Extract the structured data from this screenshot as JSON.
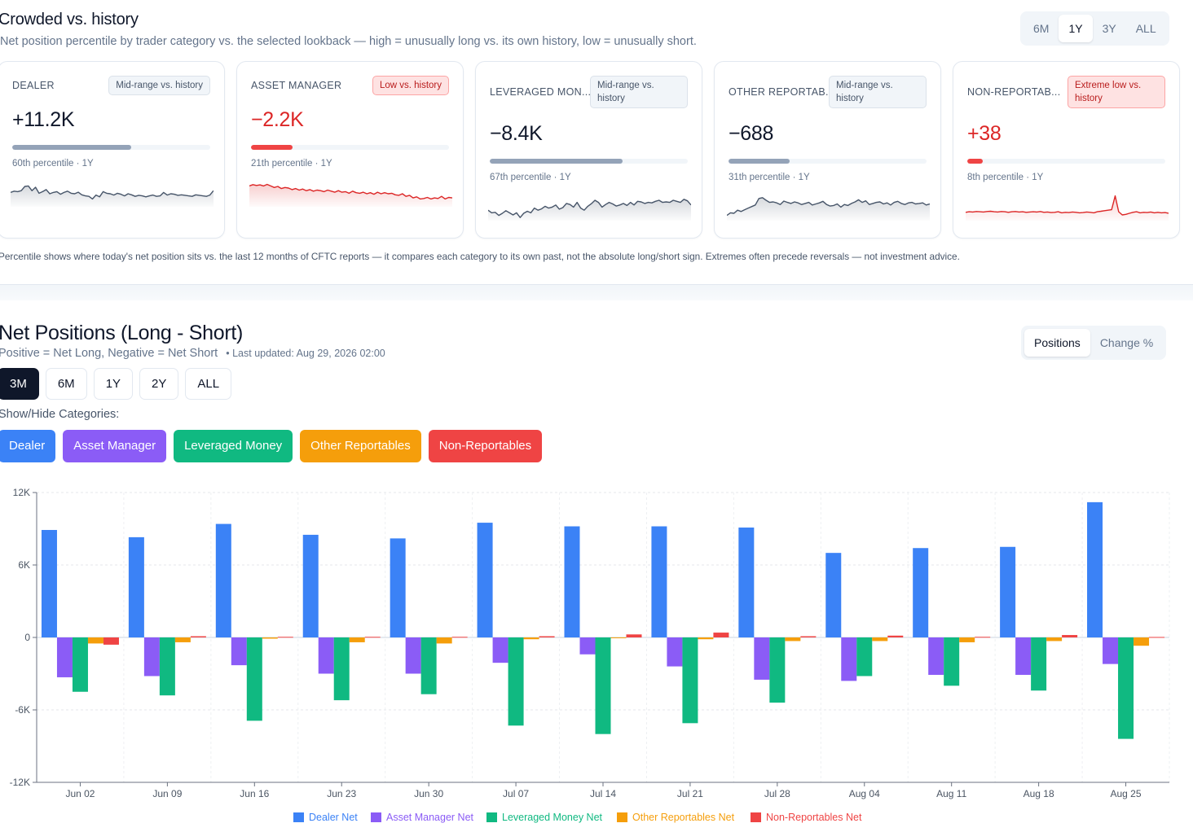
{
  "crowded": {
    "title": "Crowded vs. history",
    "subtitle": "Net position percentile by trader category vs. the selected lookback — high = unusually long vs. its own history, low = unusually short.",
    "lookback_options": [
      "6M",
      "1Y",
      "3Y",
      "ALL"
    ],
    "lookback_selected": "1Y",
    "note": "Percentile shows where today's net position sits vs. the last 12 months of CFTC reports — it compares each category to its own past, not the absolute long/short sign. Extremes often precede reversals — not investment advice.",
    "cards": [
      {
        "category": "DEALER",
        "badge": "Mid-range vs. history",
        "badge_kind": "neutral",
        "value": "+11.2K",
        "percentile": 60,
        "percentile_text": "60th percentile · 1Y",
        "color": "#94a3b8",
        "value_color": "#0f172a",
        "spark_color": "#475569",
        "spark": [
          0.55,
          0.6,
          0.58,
          0.62,
          0.78,
          0.8,
          0.62,
          0.75,
          0.52,
          0.58,
          0.66,
          0.5,
          0.55,
          0.58,
          0.48,
          0.55,
          0.6,
          0.52,
          0.5,
          0.56,
          0.46,
          0.42,
          0.4,
          0.3,
          0.45,
          0.38,
          0.58,
          0.52,
          0.5,
          0.45,
          0.52,
          0.48,
          0.42,
          0.5,
          0.46,
          0.4,
          0.44,
          0.42,
          0.38,
          0.42,
          0.45,
          0.4,
          0.42,
          0.55,
          0.45,
          0.5,
          0.48,
          0.44,
          0.46,
          0.44,
          0.42,
          0.4,
          0.46,
          0.44,
          0.42,
          0.4,
          0.45,
          0.62
        ]
      },
      {
        "category": "ASSET MANAGER",
        "badge": "Low vs. history",
        "badge_kind": "low",
        "value": "−2.2K",
        "percentile": 21,
        "percentile_text": "21th percentile · 1Y",
        "color": "#ef4444",
        "value_color": "#dc2626",
        "spark_color": "#dc2626",
        "spark": [
          0.8,
          0.85,
          0.82,
          0.84,
          0.8,
          0.86,
          0.8,
          0.74,
          0.78,
          0.7,
          0.74,
          0.72,
          0.66,
          0.7,
          0.64,
          0.68,
          0.62,
          0.66,
          0.6,
          0.64,
          0.62,
          0.58,
          0.64,
          0.6,
          0.56,
          0.62,
          0.56,
          0.58,
          0.52,
          0.6,
          0.54,
          0.52,
          0.56,
          0.5,
          0.54,
          0.48,
          0.56,
          0.5,
          0.54,
          0.5,
          0.52,
          0.46,
          0.44,
          0.5,
          0.4,
          0.44,
          0.34,
          0.38,
          0.3,
          0.32,
          0.36,
          0.3,
          0.34,
          0.32,
          0.4,
          0.3,
          0.36,
          0.34
        ]
      },
      {
        "category": "LEVERAGED MON...",
        "badge": "Mid-range vs. history",
        "badge_kind": "neutral",
        "value": "−8.4K",
        "percentile": 67,
        "percentile_text": "67th percentile · 1Y",
        "color": "#94a3b8",
        "value_color": "#0f172a",
        "spark_color": "#475569",
        "spark": [
          0.4,
          0.3,
          0.32,
          0.2,
          0.28,
          0.38,
          0.3,
          0.22,
          0.3,
          0.12,
          0.28,
          0.36,
          0.3,
          0.48,
          0.4,
          0.45,
          0.55,
          0.48,
          0.52,
          0.6,
          0.44,
          0.5,
          0.66,
          0.62,
          0.52,
          0.7,
          0.48,
          0.4,
          0.55,
          0.65,
          0.78,
          0.7,
          0.52,
          0.62,
          0.7,
          0.64,
          0.56,
          0.6,
          0.66,
          0.58,
          0.7,
          0.6,
          0.74,
          0.72,
          0.66,
          0.7,
          0.68,
          0.74,
          0.78,
          0.7,
          0.72,
          0.7,
          0.78,
          0.74,
          0.7,
          0.82,
          0.76,
          0.6
        ]
      },
      {
        "category": "OTHER REPORTAB...",
        "badge": "Mid-range vs. history",
        "badge_kind": "neutral",
        "value": "−688",
        "percentile": 31,
        "percentile_text": "31th percentile · 1Y",
        "color": "#94a3b8",
        "value_color": "#0f172a",
        "spark_color": "#475569",
        "spark": [
          0.2,
          0.3,
          0.28,
          0.4,
          0.35,
          0.42,
          0.48,
          0.54,
          0.6,
          0.85,
          0.88,
          0.78,
          0.7,
          0.72,
          0.68,
          0.62,
          0.75,
          0.7,
          0.66,
          0.72,
          0.68,
          0.62,
          0.66,
          0.7,
          0.6,
          0.64,
          0.68,
          0.74,
          0.62,
          0.56,
          0.58,
          0.64,
          0.52,
          0.62,
          0.58,
          0.66,
          0.72,
          0.8,
          0.7,
          0.76,
          0.62,
          0.66,
          0.7,
          0.72,
          0.64,
          0.68,
          0.6,
          0.7,
          0.74,
          0.66,
          0.62,
          0.68,
          0.7,
          0.64,
          0.66,
          0.68,
          0.6,
          0.64
        ]
      },
      {
        "category": "NON-REPORTAB...",
        "badge": "Extreme low vs. history",
        "badge_kind": "low",
        "value": "+38",
        "percentile": 8,
        "percentile_text": "8th percentile · 1Y",
        "color": "#ef4444",
        "value_color": "#dc2626",
        "spark_color": "#dc2626",
        "spark": [
          0.32,
          0.34,
          0.33,
          0.35,
          0.34,
          0.33,
          0.35,
          0.36,
          0.34,
          0.33,
          0.35,
          0.34,
          0.32,
          0.34,
          0.35,
          0.33,
          0.34,
          0.32,
          0.33,
          0.34,
          0.33,
          0.35,
          0.32,
          0.33,
          0.31,
          0.32,
          0.34,
          0.3,
          0.32,
          0.31,
          0.33,
          0.32,
          0.3,
          0.31,
          0.33,
          0.32,
          0.3,
          0.34,
          0.36,
          0.38,
          0.4,
          0.42,
          0.95,
          0.34,
          0.22,
          0.24,
          0.28,
          0.32,
          0.34,
          0.3,
          0.32,
          0.31,
          0.33,
          0.3,
          0.32,
          0.3,
          0.31,
          0.28
        ]
      }
    ]
  },
  "net": {
    "title": "Net Positions (Long - Short)",
    "subtitle": "Positive = Net Long, Negative = Net Short",
    "updated": "• Last updated: Aug 29, 2026 02:00",
    "view_options": [
      "Positions",
      "Change %"
    ],
    "view_selected": "Positions",
    "ranges": [
      "3M",
      "6M",
      "1Y",
      "2Y",
      "ALL"
    ],
    "range_selected": "3M",
    "show_hide_label": "Show/Hide Categories:",
    "categories": [
      {
        "label": "Dealer",
        "color": "#3b82f6"
      },
      {
        "label": "Asset Manager",
        "color": "#8b5cf6"
      },
      {
        "label": "Leveraged Money",
        "color": "#10b981"
      },
      {
        "label": "Other Reportables",
        "color": "#f59e0b"
      },
      {
        "label": "Non-Reportables",
        "color": "#ef4444"
      }
    ]
  },
  "chart_data": {
    "type": "bar",
    "categories": [
      "Jun 02",
      "Jun 09",
      "Jun 16",
      "Jun 23",
      "Jun 30",
      "Jul 07",
      "Jul 14",
      "Jul 21",
      "Jul 28",
      "Aug 04",
      "Aug 11",
      "Aug 18",
      "Aug 25"
    ],
    "yticks": [
      {
        "v": 12000,
        "label": "12K"
      },
      {
        "v": 6000,
        "label": "6K"
      },
      {
        "v": 0,
        "label": "0"
      },
      {
        "v": -6000,
        "label": "-6K"
      },
      {
        "v": -12000,
        "label": "-12K"
      }
    ],
    "ylim": [
      -12000,
      12000
    ],
    "grid": true,
    "legend": "bottom",
    "series": [
      {
        "name": "Dealer Net",
        "color": "#3b82f6",
        "values": [
          8900,
          8300,
          9400,
          8500,
          8200,
          9500,
          9200,
          9200,
          9100,
          7000,
          7400,
          7500,
          11200
        ]
      },
      {
        "name": "Asset Manager Net",
        "color": "#8b5cf6",
        "values": [
          -3300,
          -3200,
          -2300,
          -3000,
          -3000,
          -2100,
          -1400,
          -2400,
          -3500,
          -3600,
          -3100,
          -3100,
          -2200
        ]
      },
      {
        "name": "Leveraged Money Net",
        "color": "#10b981",
        "values": [
          -4500,
          -4800,
          -6900,
          -5200,
          -4700,
          -7300,
          -8000,
          -7100,
          -5400,
          -3200,
          -4000,
          -4400,
          -8400
        ]
      },
      {
        "name": "Other Reportables Net",
        "color": "#f59e0b",
        "values": [
          -500,
          -400,
          -100,
          -400,
          -500,
          -150,
          -50,
          -150,
          -300,
          -300,
          -400,
          -300,
          -688
        ]
      },
      {
        "name": "Non-Reportables Net",
        "color": "#ef4444",
        "values": [
          -600,
          100,
          50,
          50,
          50,
          100,
          250,
          400,
          100,
          150,
          50,
          200,
          38
        ]
      }
    ]
  }
}
